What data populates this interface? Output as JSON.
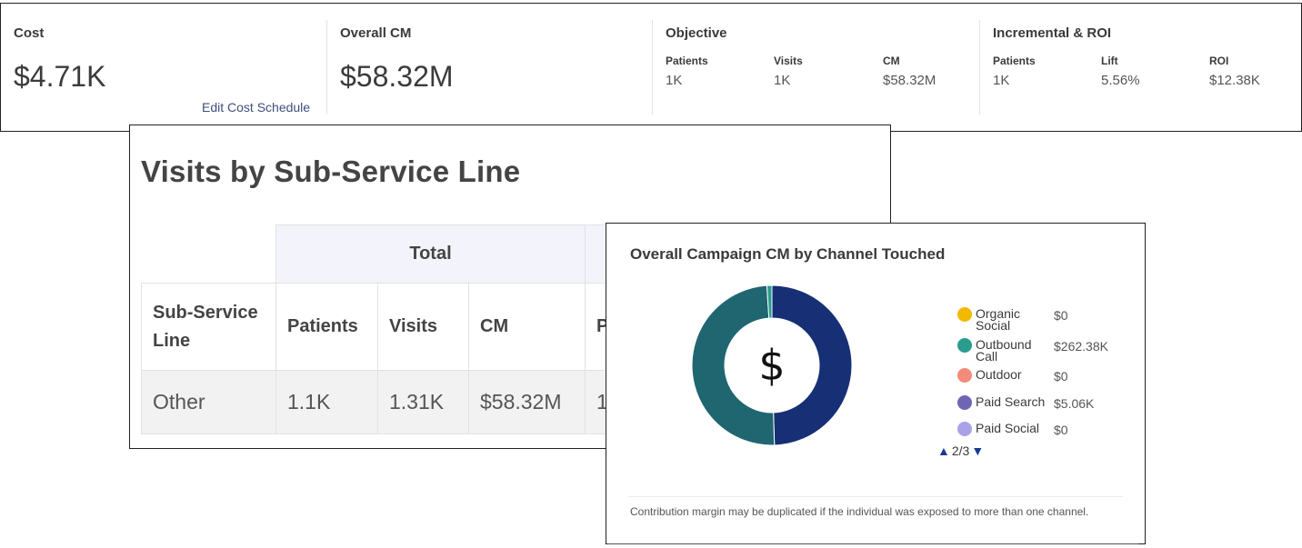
{
  "kpis": {
    "cost": {
      "label": "Cost",
      "value": "$4.71K",
      "link": "Edit Cost Schedule"
    },
    "overall_cm": {
      "label": "Overall CM",
      "value": "$58.32M"
    },
    "objective": {
      "label": "Objective",
      "items": [
        {
          "label": "Patients",
          "value": "1K"
        },
        {
          "label": "Visits",
          "value": "1K"
        },
        {
          "label": "CM",
          "value": "$58.32M"
        }
      ]
    },
    "incremental": {
      "label": "Incremental & ROI",
      "items": [
        {
          "label": "Patients",
          "value": "1K"
        },
        {
          "label": "Lift",
          "value": "5.56%"
        },
        {
          "label": "ROI",
          "value": "$12.38K"
        }
      ]
    }
  },
  "visits": {
    "title": "Visits by Sub-Service Line",
    "group_header": "Total",
    "columns": [
      "Sub-Service Line",
      "Patients",
      "Visits",
      "CM",
      "P"
    ],
    "rows": [
      {
        "sub_service_line": "Other",
        "patients": "1.1K",
        "visits": "1.31K",
        "cm": "$58.32M",
        "p": "1"
      }
    ]
  },
  "campaign_cm": {
    "title": "Overall Campaign CM by Channel Touched",
    "center_symbol": "$",
    "legend": [
      {
        "name": "Organic Social",
        "value": "$0",
        "color": "#f2b900"
      },
      {
        "name": "Outbound Call",
        "value": "$262.38K",
        "color": "#2a9d8f"
      },
      {
        "name": "Outdoor",
        "value": "$0",
        "color": "#f28b7a"
      },
      {
        "name": "Paid Search",
        "value": "$5.06K",
        "color": "#6f66b3"
      },
      {
        "name": "Paid Social",
        "value": "$0",
        "color": "#a9a2e8"
      }
    ],
    "pager": {
      "text": "2/3",
      "up_icon": "triangle-up-icon",
      "down_icon": "triangle-down-icon"
    },
    "footnote": "Contribution margin may be duplicated if the individual was exposed to more than one channel."
  },
  "chart_data": {
    "type": "pie",
    "donut": true,
    "labels": [
      "Dark Navy Segment",
      "Outbound Call",
      "Paid Search"
    ],
    "values": [
      49.5,
      49.5,
      1.0
    ],
    "colors": [
      "#172f74",
      "#1f6670",
      "#2a9d8f"
    ]
  }
}
